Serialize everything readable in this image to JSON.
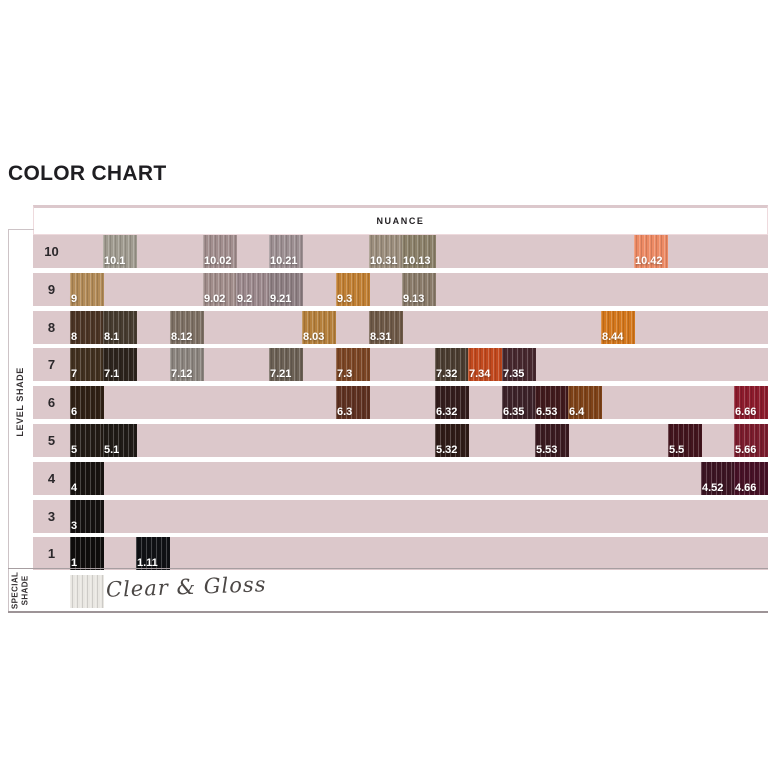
{
  "chart_data": {
    "type": "table",
    "title": "COLOR CHART",
    "column_header": "NUANCE",
    "row_axis_label": "LEVEL SHADE",
    "levels": [
      {
        "level": "10",
        "swatches": [
          {
            "code": "10.1",
            "col": 1,
            "color": "#a09b90"
          },
          {
            "code": "10.02",
            "col": 4,
            "color": "#a28e8e"
          },
          {
            "code": "10.21",
            "col": 6,
            "color": "#9d8f92"
          },
          {
            "code": "10.31",
            "col": 9,
            "color": "#9c8e7d"
          },
          {
            "code": "10.13",
            "col": 10,
            "color": "#8b8069"
          },
          {
            "code": "10.42",
            "col": 17,
            "color": "#ed8a64"
          }
        ]
      },
      {
        "level": "9",
        "swatches": [
          {
            "code": "9",
            "col": 0,
            "color": "#b28b58"
          },
          {
            "code": "9.02",
            "col": 4,
            "color": "#a18d8b"
          },
          {
            "code": "9.2",
            "col": 5,
            "color": "#9b888c"
          },
          {
            "code": "9.21",
            "col": 6,
            "color": "#8e7f83"
          },
          {
            "code": "9.3",
            "col": 8,
            "color": "#c07f33"
          },
          {
            "code": "9.13",
            "col": 10,
            "color": "#8a7b6a"
          }
        ]
      },
      {
        "level": "8",
        "swatches": [
          {
            "code": "8",
            "col": 0,
            "color": "#4b3424"
          },
          {
            "code": "8.1",
            "col": 1,
            "color": "#463b2f"
          },
          {
            "code": "8.12",
            "col": 3,
            "color": "#7d7064"
          },
          {
            "code": "8.03",
            "col": 7,
            "color": "#b5803c"
          },
          {
            "code": "8.31",
            "col": 9,
            "color": "#6e5947"
          },
          {
            "code": "8.44",
            "col": 16,
            "color": "#d4771c"
          }
        ]
      },
      {
        "level": "7",
        "swatches": [
          {
            "code": "7",
            "col": 0,
            "color": "#41301f"
          },
          {
            "code": "7.1",
            "col": 1,
            "color": "#2c231c"
          },
          {
            "code": "7.12",
            "col": 3,
            "color": "#8b847e"
          },
          {
            "code": "7.21",
            "col": 6,
            "color": "#6b6054"
          },
          {
            "code": "7.3",
            "col": 8,
            "color": "#7b4524"
          },
          {
            "code": "7.32",
            "col": 11,
            "color": "#4a3c30"
          },
          {
            "code": "7.34",
            "col": 12,
            "color": "#c2491e"
          },
          {
            "code": "7.35",
            "col": 13,
            "color": "#46282e"
          }
        ]
      },
      {
        "level": "6",
        "swatches": [
          {
            "code": "6",
            "col": 0,
            "color": "#2f2014"
          },
          {
            "code": "6.3",
            "col": 8,
            "color": "#5e3121"
          },
          {
            "code": "6.32",
            "col": 11,
            "color": "#331c1c"
          },
          {
            "code": "6.35",
            "col": 13,
            "color": "#3c2229"
          },
          {
            "code": "6.53",
            "col": 14,
            "color": "#40191c"
          },
          {
            "code": "6.4",
            "col": 15,
            "color": "#7e4218"
          },
          {
            "code": "6.66",
            "col": 20,
            "color": "#8c1b2c"
          }
        ]
      },
      {
        "level": "5",
        "swatches": [
          {
            "code": "5",
            "col": 0,
            "color": "#221a14"
          },
          {
            "code": "5.1",
            "col": 1,
            "color": "#1f1a16"
          },
          {
            "code": "5.32",
            "col": 11,
            "color": "#2f1b17"
          },
          {
            "code": "5.53",
            "col": 14,
            "color": "#3a1a20"
          },
          {
            "code": "5.5",
            "col": 18,
            "color": "#42141d"
          },
          {
            "code": "5.66",
            "col": 20,
            "color": "#7b1c2d"
          }
        ]
      },
      {
        "level": "4",
        "swatches": [
          {
            "code": "4",
            "col": 0,
            "color": "#181310"
          },
          {
            "code": "4.52",
            "col": 19,
            "color": "#3c1523"
          },
          {
            "code": "4.66",
            "col": 20,
            "color": "#471126"
          }
        ]
      },
      {
        "level": "3",
        "swatches": [
          {
            "code": "3",
            "col": 0,
            "color": "#151110"
          }
        ]
      },
      {
        "level": "1",
        "swatches": [
          {
            "code": "1",
            "col": 0,
            "color": "#0f0d0c"
          },
          {
            "code": "1.11",
            "col": 2,
            "color": "#101114"
          }
        ]
      }
    ],
    "special": {
      "label_line1": "SPECIAL",
      "label_line2": "SHADE",
      "note": "Clear & Gloss",
      "swatch": {
        "code": "",
        "col": 0,
        "color": "#e9e7e2"
      }
    },
    "palette": {
      "band": "#dcc8cb",
      "header_border": "#eedadd",
      "header_top_strip": "#dcc8cc",
      "grid_line": "#cdc3c6",
      "separator": "#9d9497",
      "swatch_label": "#ffffff",
      "row_number": "#2b282b",
      "title_ink": "#1f1e22",
      "note_ink": "#4b4745"
    }
  }
}
